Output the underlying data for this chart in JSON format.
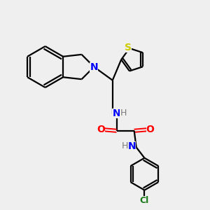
{
  "background_color": "#efefef",
  "bond_color": "#000000",
  "N_color": "#0000ff",
  "O_color": "#ff0000",
  "S_color": "#cccc00",
  "Cl_color": "#1a7a1a",
  "H_color": "#7a7a7a",
  "figsize": [
    3.0,
    3.0
  ],
  "dpi": 100,
  "xlim": [
    0,
    10
  ],
  "ylim": [
    0,
    10
  ]
}
